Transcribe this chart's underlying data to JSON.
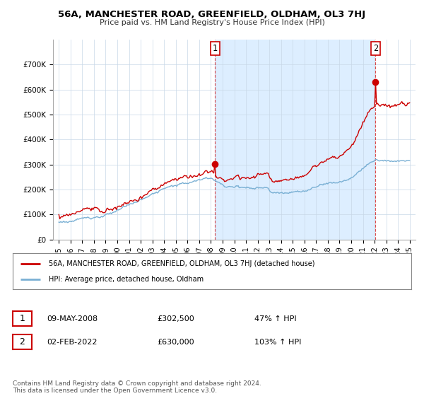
{
  "title": "56A, MANCHESTER ROAD, GREENFIELD, OLDHAM, OL3 7HJ",
  "subtitle": "Price paid vs. HM Land Registry's House Price Index (HPI)",
  "yticks": [
    0,
    100000,
    200000,
    300000,
    400000,
    500000,
    600000,
    700000
  ],
  "ytick_labels": [
    "£0",
    "£100K",
    "£200K",
    "£300K",
    "£400K",
    "£500K",
    "£600K",
    "£700K"
  ],
  "ylim": [
    0,
    800000
  ],
  "xlim_start": 1994.5,
  "xlim_end": 2025.5,
  "xticks": [
    1995,
    1996,
    1997,
    1998,
    1999,
    2000,
    2001,
    2002,
    2003,
    2004,
    2005,
    2006,
    2007,
    2008,
    2009,
    2010,
    2011,
    2012,
    2013,
    2014,
    2015,
    2016,
    2017,
    2018,
    2019,
    2020,
    2021,
    2022,
    2023,
    2024,
    2025
  ],
  "property_color": "#cc0000",
  "hpi_color": "#7ab0d4",
  "shade_color": "#ddeeff",
  "sale1_x": 2008.36,
  "sale1_y": 302500,
  "sale2_x": 2022.08,
  "sale2_y": 630000,
  "legend_property": "56A, MANCHESTER ROAD, GREENFIELD, OLDHAM, OL3 7HJ (detached house)",
  "legend_hpi": "HPI: Average price, detached house, Oldham",
  "table_rows": [
    {
      "num": "1",
      "date": "09-MAY-2008",
      "price": "£302,500",
      "change": "47% ↑ HPI"
    },
    {
      "num": "2",
      "date": "02-FEB-2022",
      "price": "£630,000",
      "change": "103% ↑ HPI"
    }
  ],
  "footnote": "Contains HM Land Registry data © Crown copyright and database right 2024.\nThis data is licensed under the Open Government Licence v3.0.",
  "background_color": "#ffffff",
  "grid_color": "#c8d8e8"
}
